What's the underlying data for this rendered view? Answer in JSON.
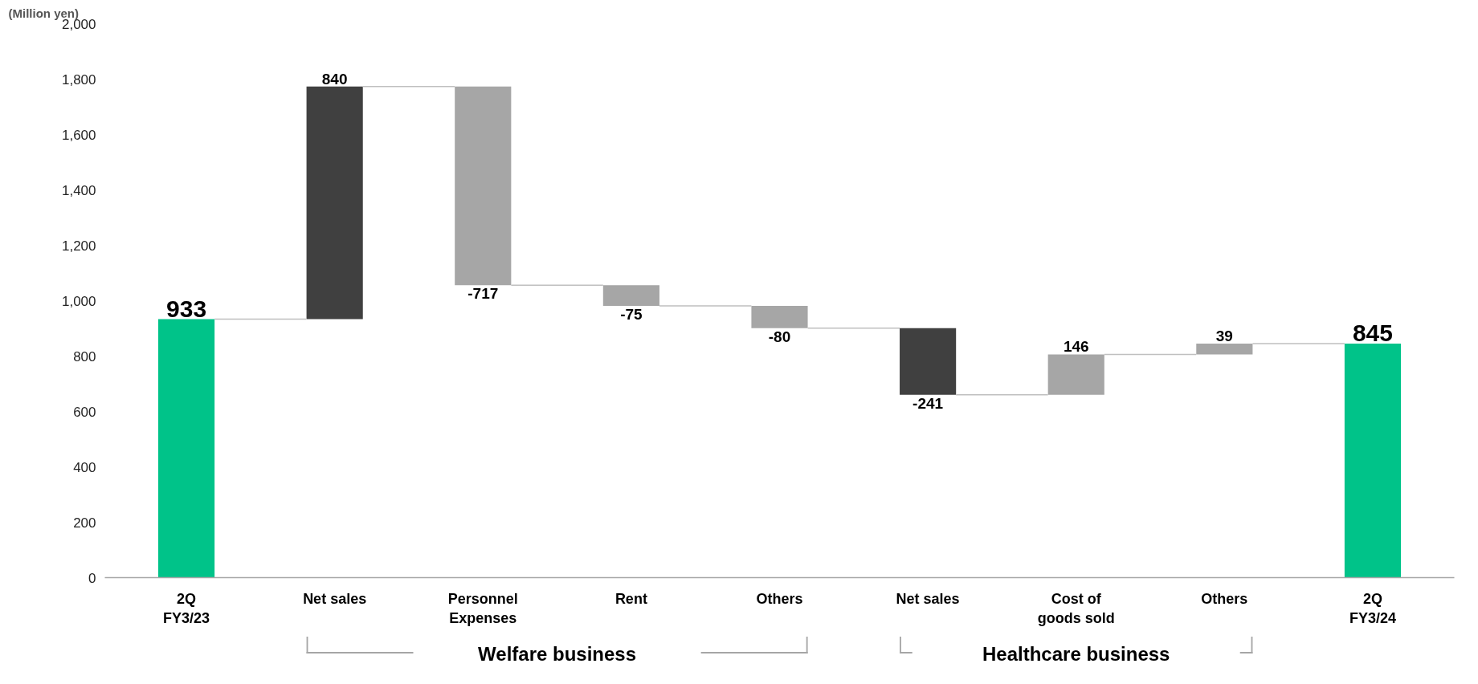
{
  "chart_data": {
    "type": "bar",
    "ylabel": "(Million yen)",
    "categories": [
      "2Q\nFY3/23",
      "Net sales",
      "Personnel\nExpenses",
      "Rent",
      "Others",
      "Net sales",
      "Cost of\ngoods sold",
      "Others",
      "2Q\nFY3/24"
    ],
    "values": [
      933,
      840,
      -717,
      -75,
      -80,
      -241,
      146,
      39,
      845
    ],
    "base": [
      0,
      933,
      1773,
      1056,
      981,
      901,
      660,
      806,
      0
    ],
    "colors": [
      "#00c389",
      "#404040",
      "#a6a6a6",
      "#a6a6a6",
      "#a6a6a6",
      "#404040",
      "#a6a6a6",
      "#a6a6a6",
      "#00c389"
    ],
    "data_labels": true,
    "ylim": [
      0,
      2000
    ],
    "yticks": [
      0,
      200,
      400,
      600,
      800,
      {
        "value": 1000,
        "label": "1,000"
      },
      {
        "value": 1200,
        "label": "1,200"
      },
      {
        "value": 1400,
        "label": "1,400"
      },
      {
        "value": 1600,
        "label": "1,600"
      },
      {
        "value": 1800,
        "label": "1,800"
      },
      {
        "value": 2000,
        "label": "2,000"
      }
    ],
    "annotations": [
      "Welfare business",
      "Healthcare business"
    ],
    "grid": false
  }
}
